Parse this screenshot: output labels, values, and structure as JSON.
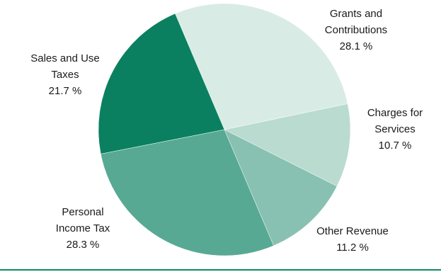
{
  "chart_data": {
    "type": "pie",
    "slices": [
      {
        "label_lines": [
          "Grants and",
          "Contributions"
        ],
        "value_text": "28.1 %",
        "value": 28.1,
        "color": "#d9ebe5"
      },
      {
        "label_lines": [
          "Charges for",
          "Services"
        ],
        "value_text": "10.7 %",
        "value": 10.7,
        "color": "#b9dbd0"
      },
      {
        "label_lines": [
          "Other Revenue"
        ],
        "value_text": "11.2 %",
        "value": 11.2,
        "color": "#88c1b1"
      },
      {
        "label_lines": [
          "Personal",
          "Income Tax"
        ],
        "value_text": "28.3 %",
        "value": 28.3,
        "color": "#57a993"
      },
      {
        "label_lines": [
          "Sales and Use",
          "Taxes"
        ],
        "value_text": "21.7 %",
        "value": 21.7,
        "color": "#0a8060"
      }
    ],
    "border_color": "#0f8a5e"
  }
}
